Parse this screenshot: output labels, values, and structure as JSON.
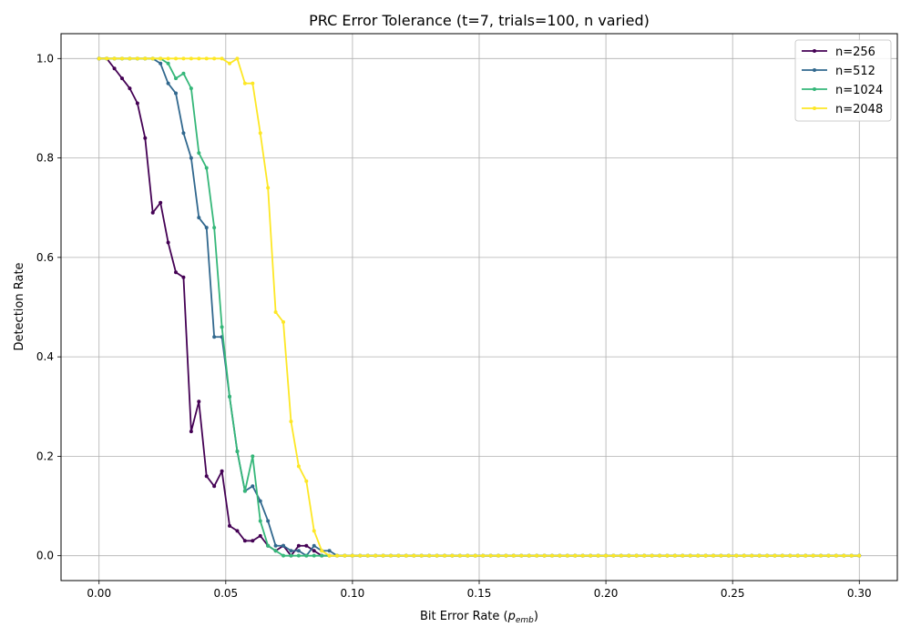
{
  "chart_data": {
    "type": "line",
    "title": "PRC Error Tolerance (t=7, trials=100, n varied)",
    "xlabel_main": "Bit Error Rate (",
    "xlabel_var": "p",
    "xlabel_sub": "emb",
    "xlabel_close": ")",
    "ylabel": "Detection Rate",
    "xlim": [
      -0.015,
      0.315
    ],
    "ylim": [
      -0.05,
      1.05
    ],
    "x_ticks": [
      0.0,
      0.05,
      0.1,
      0.15,
      0.2,
      0.25,
      0.3
    ],
    "x_tick_labels": [
      "0.00",
      "0.05",
      "0.10",
      "0.15",
      "0.20",
      "0.25",
      "0.30"
    ],
    "y_ticks": [
      0.0,
      0.2,
      0.4,
      0.6,
      0.8,
      1.0
    ],
    "y_tick_labels": [
      "0.0",
      "0.2",
      "0.4",
      "0.6",
      "0.8",
      "1.0"
    ],
    "grid": true,
    "legend_position": "top-right",
    "x_start": 0.0,
    "x_step": 0.00303,
    "series": [
      {
        "name": "n=256",
        "color": "#440154",
        "values": [
          1.0,
          1.0,
          0.98,
          0.96,
          0.94,
          0.91,
          0.84,
          0.69,
          0.71,
          0.63,
          0.57,
          0.56,
          0.25,
          0.31,
          0.16,
          0.14,
          0.17,
          0.06,
          0.05,
          0.03,
          0.03,
          0.04,
          0.02,
          0.01,
          0.02,
          0.0,
          0.02,
          0.02,
          0.01,
          0.0,
          0.0,
          0.0,
          0.0,
          0.0,
          0.0,
          0.0,
          0.0,
          0.0,
          0.0,
          0.0,
          0.0,
          0.0,
          0.0,
          0.0,
          0.0,
          0.0,
          0.0,
          0.0,
          0.0,
          0.0,
          0.0,
          0.0,
          0.0,
          0.0,
          0.0,
          0.0,
          0.0,
          0.0,
          0.0,
          0.0,
          0.0,
          0.0,
          0.0,
          0.0,
          0.0,
          0.0,
          0.0,
          0.0,
          0.0,
          0.0,
          0.0,
          0.0,
          0.0,
          0.0,
          0.0,
          0.0,
          0.0,
          0.0,
          0.0,
          0.0,
          0.0,
          0.0,
          0.0,
          0.0,
          0.0,
          0.0,
          0.0,
          0.0,
          0.0,
          0.0,
          0.0,
          0.0,
          0.0,
          0.0,
          0.0,
          0.0,
          0.0,
          0.0,
          0.0,
          0.0
        ]
      },
      {
        "name": "n=512",
        "color": "#31688e",
        "values": [
          1.0,
          1.0,
          1.0,
          1.0,
          1.0,
          1.0,
          1.0,
          1.0,
          0.99,
          0.95,
          0.93,
          0.85,
          0.8,
          0.68,
          0.66,
          0.44,
          0.44,
          0.32,
          0.21,
          0.13,
          0.14,
          0.11,
          0.07,
          0.02,
          0.02,
          0.01,
          0.01,
          0.0,
          0.02,
          0.01,
          0.01,
          0.0,
          0.0,
          0.0,
          0.0,
          0.0,
          0.0,
          0.0,
          0.0,
          0.0,
          0.0,
          0.0,
          0.0,
          0.0,
          0.0,
          0.0,
          0.0,
          0.0,
          0.0,
          0.0,
          0.0,
          0.0,
          0.0,
          0.0,
          0.0,
          0.0,
          0.0,
          0.0,
          0.0,
          0.0,
          0.0,
          0.0,
          0.0,
          0.0,
          0.0,
          0.0,
          0.0,
          0.0,
          0.0,
          0.0,
          0.0,
          0.0,
          0.0,
          0.0,
          0.0,
          0.0,
          0.0,
          0.0,
          0.0,
          0.0,
          0.0,
          0.0,
          0.0,
          0.0,
          0.0,
          0.0,
          0.0,
          0.0,
          0.0,
          0.0,
          0.0,
          0.0,
          0.0,
          0.0,
          0.0,
          0.0,
          0.0,
          0.0,
          0.0,
          0.0
        ]
      },
      {
        "name": "n=1024",
        "color": "#35b779",
        "values": [
          1.0,
          1.0,
          1.0,
          1.0,
          1.0,
          1.0,
          1.0,
          1.0,
          1.0,
          0.99,
          0.96,
          0.97,
          0.94,
          0.81,
          0.78,
          0.66,
          0.46,
          0.32,
          0.21,
          0.13,
          0.2,
          0.07,
          0.02,
          0.01,
          0.0,
          0.0,
          0.0,
          0.0,
          0.0,
          0.0,
          0.0,
          0.0,
          0.0,
          0.0,
          0.0,
          0.0,
          0.0,
          0.0,
          0.0,
          0.0,
          0.0,
          0.0,
          0.0,
          0.0,
          0.0,
          0.0,
          0.0,
          0.0,
          0.0,
          0.0,
          0.0,
          0.0,
          0.0,
          0.0,
          0.0,
          0.0,
          0.0,
          0.0,
          0.0,
          0.0,
          0.0,
          0.0,
          0.0,
          0.0,
          0.0,
          0.0,
          0.0,
          0.0,
          0.0,
          0.0,
          0.0,
          0.0,
          0.0,
          0.0,
          0.0,
          0.0,
          0.0,
          0.0,
          0.0,
          0.0,
          0.0,
          0.0,
          0.0,
          0.0,
          0.0,
          0.0,
          0.0,
          0.0,
          0.0,
          0.0,
          0.0,
          0.0,
          0.0,
          0.0,
          0.0,
          0.0,
          0.0,
          0.0,
          0.0,
          0.0
        ]
      },
      {
        "name": "n=2048",
        "color": "#fde725",
        "values": [
          1.0,
          1.0,
          1.0,
          1.0,
          1.0,
          1.0,
          1.0,
          1.0,
          1.0,
          1.0,
          1.0,
          1.0,
          1.0,
          1.0,
          1.0,
          1.0,
          1.0,
          0.99,
          1.0,
          0.95,
          0.95,
          0.85,
          0.74,
          0.49,
          0.47,
          0.27,
          0.18,
          0.15,
          0.05,
          0.01,
          0.0,
          0.0,
          0.0,
          0.0,
          0.0,
          0.0,
          0.0,
          0.0,
          0.0,
          0.0,
          0.0,
          0.0,
          0.0,
          0.0,
          0.0,
          0.0,
          0.0,
          0.0,
          0.0,
          0.0,
          0.0,
          0.0,
          0.0,
          0.0,
          0.0,
          0.0,
          0.0,
          0.0,
          0.0,
          0.0,
          0.0,
          0.0,
          0.0,
          0.0,
          0.0,
          0.0,
          0.0,
          0.0,
          0.0,
          0.0,
          0.0,
          0.0,
          0.0,
          0.0,
          0.0,
          0.0,
          0.0,
          0.0,
          0.0,
          0.0,
          0.0,
          0.0,
          0.0,
          0.0,
          0.0,
          0.0,
          0.0,
          0.0,
          0.0,
          0.0,
          0.0,
          0.0,
          0.0,
          0.0,
          0.0,
          0.0,
          0.0,
          0.0,
          0.0,
          0.0
        ]
      }
    ]
  }
}
